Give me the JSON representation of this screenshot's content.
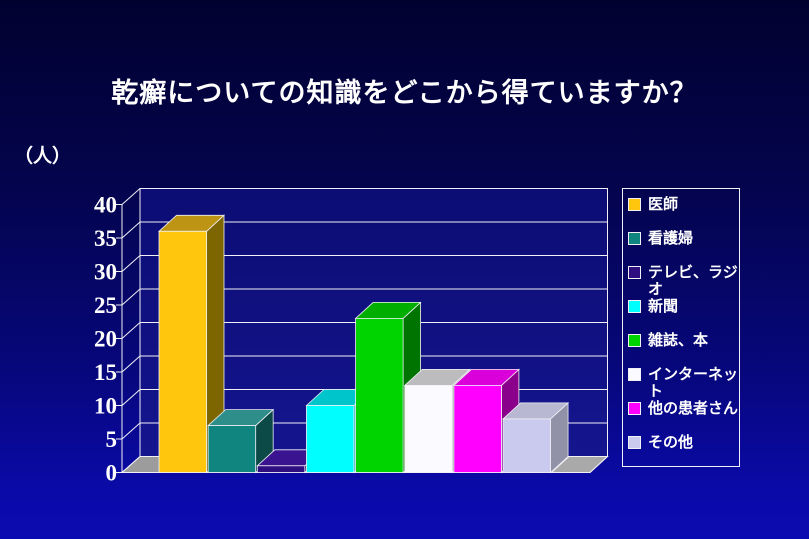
{
  "slide": {
    "title": "乾癬についての知識をどこから得ていますか？",
    "unit_label": "（人）"
  },
  "chart_data": {
    "type": "bar",
    "style": "3d-columns",
    "title": "乾癬についての知識をどこから得ていますか？",
    "ylabel": "（人）",
    "xlabel": "",
    "ylim": [
      0,
      40
    ],
    "ytick_step": 5,
    "yticks": [
      0,
      5,
      10,
      15,
      20,
      25,
      30,
      35,
      40
    ],
    "grid": true,
    "legend_position": "right",
    "categories": [
      "医師",
      "看護婦",
      "テレビ、ラジオ",
      "新聞",
      "雑誌、本",
      "インターネット",
      "他の患者さん",
      "その他"
    ],
    "values": [
      36,
      7,
      1,
      10,
      23,
      13,
      13,
      8
    ],
    "series": [
      {
        "name": "医師",
        "value": 36,
        "color": "#ffc60d",
        "top": "#bd9414",
        "side": "#7d6500"
      },
      {
        "name": "看護婦",
        "value": 7,
        "color": "#108580",
        "top": "#2e8f8a",
        "side": "#0b4a47"
      },
      {
        "name": "テレビ、ラジオ",
        "value": 1,
        "color": "#2f0e80",
        "top": "#3a1490",
        "side": "#22085e"
      },
      {
        "name": "新聞",
        "value": 10,
        "color": "#00feff",
        "top": "#00c6cc",
        "side": "#00999e"
      },
      {
        "name": "雑誌、本",
        "value": 23,
        "color": "#00d400",
        "top": "#00ae00",
        "side": "#007400"
      },
      {
        "name": "インターネット",
        "value": 13,
        "color": "#fbfbff",
        "top": "#bcbcbf",
        "side": "#939396"
      },
      {
        "name": "他の患者さん",
        "value": 13,
        "color": "#ff00ff",
        "top": "#d900d9",
        "side": "#8b008b"
      },
      {
        "name": "その他",
        "value": 8,
        "color": "#cacaef",
        "top": "#b8b8d2",
        "side": "#9191a8"
      }
    ]
  },
  "colors": {
    "background_top": "#010130",
    "background_bottom": "#0b0bb2",
    "wall": "#11118a",
    "floor_inner": "#0e0e7c",
    "floor_corner_left": "#9c9c9c",
    "floor_corner_right": "#a9a9a9",
    "grid_line": "#f0f0f5",
    "text": "#ffffff"
  }
}
